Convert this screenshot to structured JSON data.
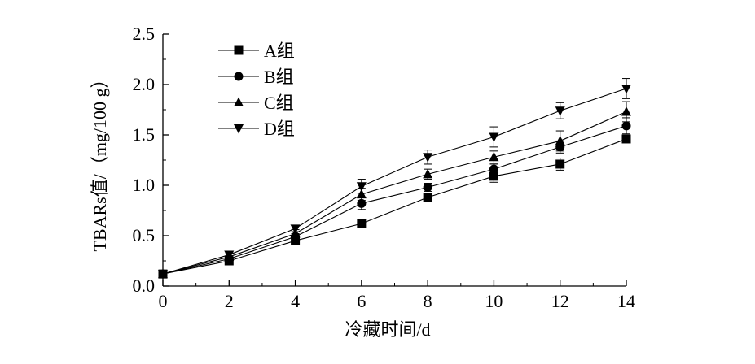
{
  "chart_data": {
    "type": "line",
    "xlabel": "冷藏时间/d",
    "ylabel": "TBARs值/（mg/100 g）",
    "x": [
      0,
      2,
      4,
      6,
      8,
      10,
      12,
      14
    ],
    "xlim": [
      0,
      14
    ],
    "ylim": [
      0,
      2.5
    ],
    "xticks": [
      "0",
      "2",
      "4",
      "6",
      "8",
      "10",
      "12",
      "14"
    ],
    "yticks": [
      "0.0",
      "0.5",
      "1.0",
      "1.5",
      "2.0",
      "2.5"
    ],
    "grid": false,
    "legend_position": "top-left",
    "series": [
      {
        "name": "A组",
        "marker": "square",
        "values": [
          0.12,
          0.25,
          0.45,
          0.62,
          0.88,
          1.09,
          1.21,
          1.46
        ],
        "errors": [
          0.02,
          0.03,
          0.03,
          0.03,
          0.04,
          0.06,
          0.06,
          0.03
        ]
      },
      {
        "name": "B组",
        "marker": "circle",
        "values": [
          0.12,
          0.27,
          0.49,
          0.82,
          0.98,
          1.16,
          1.38,
          1.59
        ],
        "errors": [
          0.02,
          0.03,
          0.03,
          0.06,
          0.04,
          0.05,
          0.06,
          0.08
        ]
      },
      {
        "name": "C组",
        "marker": "triangle-up",
        "values": [
          0.12,
          0.29,
          0.52,
          0.91,
          1.11,
          1.28,
          1.44,
          1.73
        ],
        "errors": [
          0.02,
          0.03,
          0.04,
          0.06,
          0.05,
          0.06,
          0.1,
          0.1
        ]
      },
      {
        "name": "D组",
        "marker": "triangle-down",
        "values": [
          0.12,
          0.31,
          0.57,
          0.99,
          1.28,
          1.48,
          1.74,
          1.96
        ],
        "errors": [
          0.02,
          0.03,
          0.03,
          0.07,
          0.07,
          0.1,
          0.08,
          0.1
        ]
      }
    ]
  }
}
